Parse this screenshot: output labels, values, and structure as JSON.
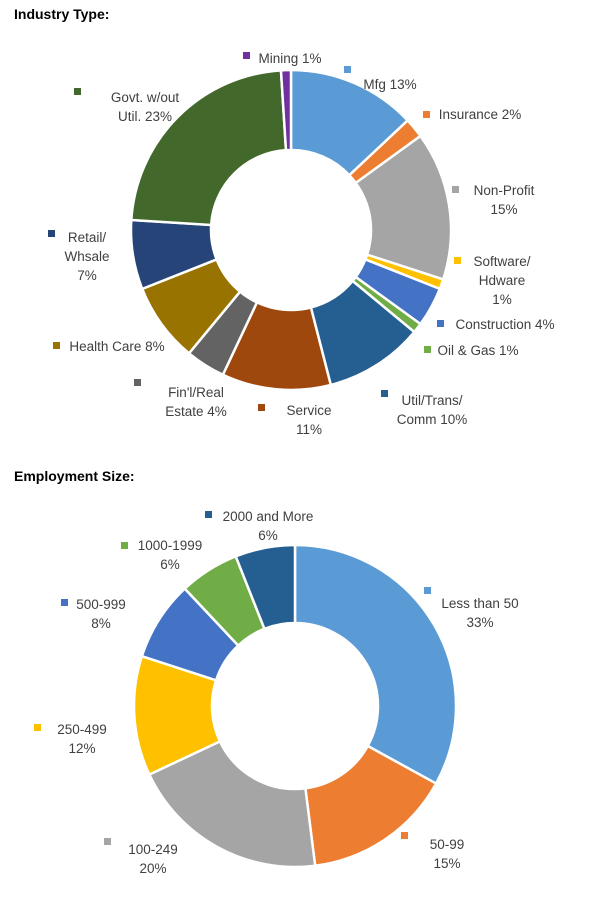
{
  "chart_data": [
    {
      "type": "pie",
      "variant": "donut",
      "title": "Industry Type:",
      "categories": [
        "Mfg",
        "Insurance",
        "Non-Profit",
        "Software/Hdware",
        "Construction",
        "Oil & Gas",
        "Util/Trans/Comm",
        "Service",
        "Fin'l/Real Estate",
        "Health Care",
        "Retail/Whsale",
        "Govt. w/out Util.",
        "Mining"
      ],
      "values": [
        13,
        2,
        15,
        1,
        4,
        1,
        10,
        11,
        4,
        8,
        7,
        23,
        1
      ],
      "colors": [
        "#5b9bd5",
        "#ed7d31",
        "#a5a5a5",
        "#ffc000",
        "#4472c4",
        "#70ad47",
        "#255e91",
        "#9e480e",
        "#636363",
        "#997300",
        "#264478",
        "#43682b",
        "#7030a0"
      ],
      "labels": [
        [
          "Mfg 13%"
        ],
        [
          "Insurance 2%"
        ],
        [
          "Non-Profit",
          "15%"
        ],
        [
          "Software/",
          "Hdware",
          "1%"
        ],
        [
          "Construction 4%"
        ],
        [
          "Oil & Gas 1%"
        ],
        [
          "Util/Trans/",
          "Comm 10%"
        ],
        [
          "Service",
          "11%"
        ],
        [
          "Fin'l/Real",
          "Estate 4%"
        ],
        [
          "Health Care 8%"
        ],
        [
          "Retail/",
          "Whsale",
          "7%"
        ],
        [
          "Govt. w/out",
          "Util. 23%"
        ],
        [
          "Mining 1%"
        ]
      ],
      "unit": "%"
    },
    {
      "type": "pie",
      "variant": "donut",
      "title": "Employment Size:",
      "categories": [
        "Less than 50",
        "50-99",
        "100-249",
        "250-499",
        "500-999",
        "1000-1999",
        "2000 and More"
      ],
      "values": [
        33,
        15,
        20,
        12,
        8,
        6,
        6
      ],
      "colors": [
        "#5b9bd5",
        "#ed7d31",
        "#a5a5a5",
        "#ffc000",
        "#4472c4",
        "#70ad47",
        "#255e91"
      ],
      "labels": [
        [
          "Less than 50",
          "33%"
        ],
        [
          "50-99",
          "15%"
        ],
        [
          "100-249",
          "20%"
        ],
        [
          "250-499",
          "12%"
        ],
        [
          "500-999",
          "8%"
        ],
        [
          "1000-1999",
          "6%"
        ],
        [
          "2000 and More",
          "6%"
        ]
      ],
      "unit": "%"
    }
  ]
}
